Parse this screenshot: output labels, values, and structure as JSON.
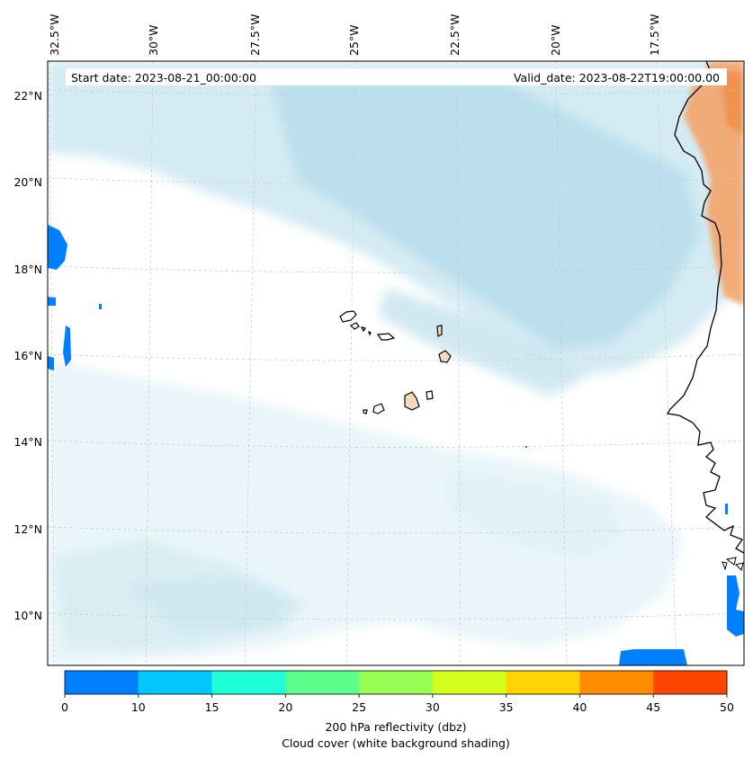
{
  "map": {
    "start_label": "Start date: 2023-08-21_00:00:00",
    "valid_label": "Valid_date: 2023-08-22T19:00:00.00",
    "lon_ticks": [
      "32.5°W",
      "30°W",
      "27.5°W",
      "25°W",
      "22.5°W",
      "20°W",
      "17.5°W"
    ],
    "lat_ticks": [
      "22°N",
      "20°N",
      "18°N",
      "16°N",
      "14°N",
      "12°N",
      "10°N"
    ],
    "land_label": "Cape Verde / West Africa coastline"
  },
  "colorbar": {
    "ticks": [
      "0",
      "10",
      "15",
      "20",
      "25",
      "30",
      "35",
      "40",
      "45",
      "50"
    ],
    "colors": [
      "#0080ff",
      "#00c8ff",
      "#1effd8",
      "#5cff8a",
      "#98ff55",
      "#d4ff1c",
      "#ffd400",
      "#ff8c00",
      "#ff4600"
    ],
    "label_line1": "200 hPa reflectivity (dbz)",
    "label_line2": "Cloud cover (white background shading)"
  },
  "colors": {
    "cloud": "#a9d7e6",
    "reflectivity_low": "#0080ff",
    "land_warm": "#f6a060",
    "island": "#f8d9bd"
  }
}
